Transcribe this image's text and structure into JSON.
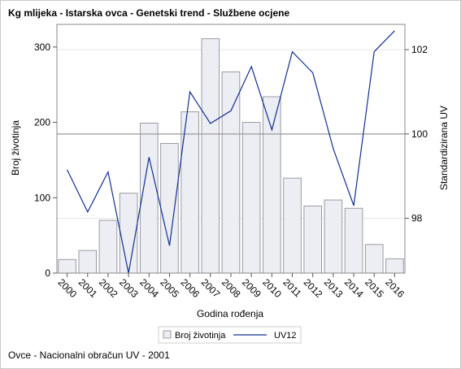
{
  "title": "Kg mlijeka - Istarska ovca - Genetski trend - Službene ocjene",
  "footnote": "Ovce - Nacionalni obračun UV - 2001",
  "colors": {
    "bar_fill": "#eceef3",
    "bar_stroke": "#9a9ca3",
    "line": "#13308f",
    "reference_line": "#9a9a9a",
    "grid": "#e6e6e6"
  },
  "chart_data": {
    "type": "bar",
    "title": "Kg mlijeka - Istarska ovca - Genetski trend - Službene ocjene",
    "xlabel": "Godina rođenja",
    "ylabel": "Broj životinja",
    "y2label": "Standardizirana UV",
    "categories": [
      "2000",
      "2001",
      "2002",
      "2003",
      "2004",
      "2005",
      "2006",
      "2007",
      "2008",
      "2009",
      "2010",
      "2011",
      "2012",
      "2013",
      "2014",
      "2015",
      "2016"
    ],
    "ylim": [
      0,
      330
    ],
    "yticks": [
      0,
      100,
      200,
      300
    ],
    "y2lim": [
      96.7,
      102.6
    ],
    "y2ticks": [
      98,
      100,
      102
    ],
    "reference_line_y2": 100,
    "grid": true,
    "legend_position": "bottom",
    "series": [
      {
        "name": "Broj životinja",
        "type": "bar",
        "axis": "left",
        "values": [
          18,
          30,
          70,
          106,
          199,
          172,
          214,
          311,
          267,
          200,
          234,
          126,
          89,
          97,
          86,
          38,
          19
        ]
      },
      {
        "name": "UV12",
        "type": "line",
        "axis": "right",
        "values": [
          99.15,
          98.15,
          99.1,
          96.7,
          99.45,
          97.35,
          101.0,
          100.25,
          100.55,
          101.6,
          100.1,
          101.95,
          101.45,
          99.65,
          98.3,
          101.95,
          102.45
        ]
      }
    ]
  }
}
